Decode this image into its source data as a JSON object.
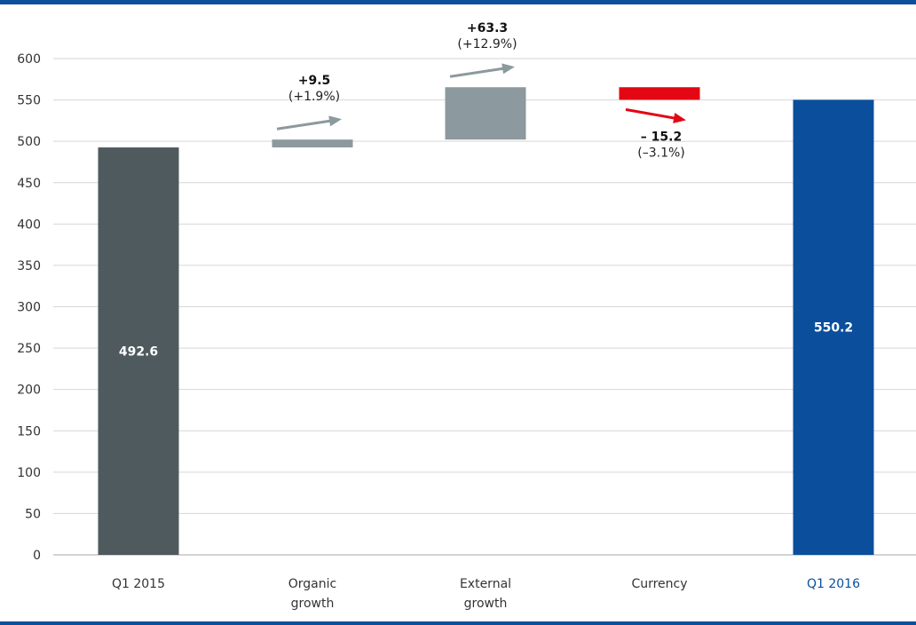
{
  "chart_data": {
    "type": "bar",
    "subtype": "waterfall",
    "categories": [
      "Q1 2015",
      "Organic\ngrowth",
      "External\ngrowth",
      "Currency",
      "Q1 2016"
    ],
    "bars": [
      {
        "kind": "total",
        "start": 0,
        "end": 492.6,
        "label": "492.6",
        "color": "#4e5a5e"
      },
      {
        "kind": "delta",
        "start": 492.6,
        "end": 502.1,
        "delta_label": "+9.5",
        "pct_label": "(+1.9%)",
        "color": "#8c999f",
        "arrow_color": "#8c999f"
      },
      {
        "kind": "delta",
        "start": 502.1,
        "end": 565.4,
        "delta_label": "+63.3",
        "pct_label": "(+12.9%)",
        "color": "#8c999f",
        "arrow_color": "#8c999f"
      },
      {
        "kind": "delta",
        "start": 565.4,
        "end": 550.2,
        "delta_label": "– 15.2",
        "pct_label": "(–3.1%)",
        "color": "#e30613",
        "arrow_color": "#e30613"
      },
      {
        "kind": "total",
        "start": 0,
        "end": 550.2,
        "label": "550.2",
        "color": "#0b4f9c"
      }
    ],
    "highlight_category_color": "#0b4f9c",
    "yticks": [
      0,
      50,
      100,
      150,
      200,
      250,
      300,
      350,
      400,
      450,
      500,
      550,
      600
    ],
    "ylim": [
      0,
      600
    ],
    "grid": true,
    "title": "",
    "xlabel": "",
    "ylabel": ""
  }
}
